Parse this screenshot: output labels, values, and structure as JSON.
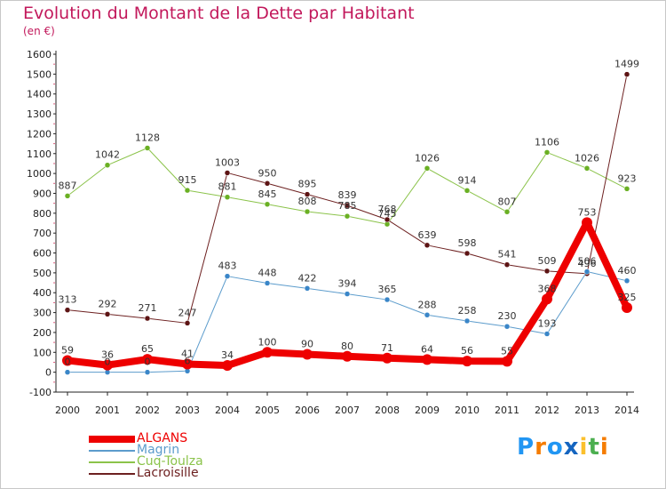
{
  "title": "Evolution du Montant de la Dette par Habitant",
  "unit": "(en €)",
  "logo": {
    "text": "Proxiti",
    "colors": [
      "#2196f3",
      "#f57c00",
      "#2196f3",
      "#1565c0",
      "#fbc02d",
      "#4caf50",
      "#f57c00"
    ]
  },
  "chart_data": {
    "type": "line",
    "title": "Evolution du Montant de la Dette par Habitant",
    "ylabel": "(en €)",
    "xlabel": "",
    "ylim": [
      -100,
      1600
    ],
    "yticks": [
      -100,
      0,
      100,
      200,
      300,
      400,
      500,
      600,
      700,
      800,
      900,
      1000,
      1100,
      1200,
      1300,
      1400,
      1500,
      1600
    ],
    "grid": false,
    "legend": "bottom-left",
    "categories": [
      "2000",
      "2001",
      "2002",
      "2003",
      "2004",
      "2005",
      "2006",
      "2007",
      "2008",
      "2009",
      "2010",
      "2011",
      "2012",
      "2013",
      "2014"
    ],
    "series": [
      {
        "name": "Cuq-Toulza",
        "color": "#8bc34a",
        "marker": "#6ab023",
        "width": 1,
        "values": [
          887,
          1042,
          1128,
          915,
          881,
          845,
          808,
          785,
          745,
          1026,
          914,
          807,
          1106,
          1026,
          923
        ],
        "labels": [
          "887",
          "1042",
          "1128",
          "915",
          "881",
          "845",
          "808",
          "785",
          "745",
          "1026",
          "914",
          "807",
          "1106",
          "1026",
          "923"
        ]
      },
      {
        "name": "Lacroisille",
        "color": "#6d2020",
        "marker": "#5d1414",
        "width": 1,
        "values": [
          313,
          292,
          271,
          247,
          1003,
          950,
          895,
          839,
          768,
          639,
          598,
          541,
          509,
          496,
          1499
        ],
        "labels": [
          "313",
          "292",
          "271",
          "247",
          "1003",
          "950",
          "895",
          "839",
          "768",
          "639",
          "598",
          "541",
          "509",
          "496",
          "1499"
        ]
      },
      {
        "name": "Magrin",
        "color": "#5c9ccc",
        "marker": "#3a86c8",
        "width": 1,
        "values": [
          0,
          0,
          0,
          6,
          483,
          448,
          422,
          394,
          365,
          288,
          258,
          230,
          193,
          506,
          460
        ],
        "labels": [
          "0",
          "0",
          "0",
          "6",
          "483",
          "448",
          "422",
          "394",
          "365",
          "288",
          "258",
          "230",
          "193",
          "506",
          "460"
        ]
      },
      {
        "name": "ALGANS",
        "color": "#ee0000",
        "marker": "#ee0000",
        "width": 8,
        "values": [
          59,
          36,
          65,
          41,
          34,
          100,
          90,
          80,
          71,
          64,
          56,
          55,
          368,
          753,
          325
        ],
        "labels": [
          "59",
          "36",
          "65",
          "41",
          "34",
          "100",
          "90",
          "80",
          "71",
          "64",
          "56",
          "55",
          "368",
          "753",
          "325"
        ]
      }
    ],
    "legend_order": [
      "ALGANS",
      "Magrin",
      "Cuq-Toulza",
      "Lacroisille"
    ]
  }
}
